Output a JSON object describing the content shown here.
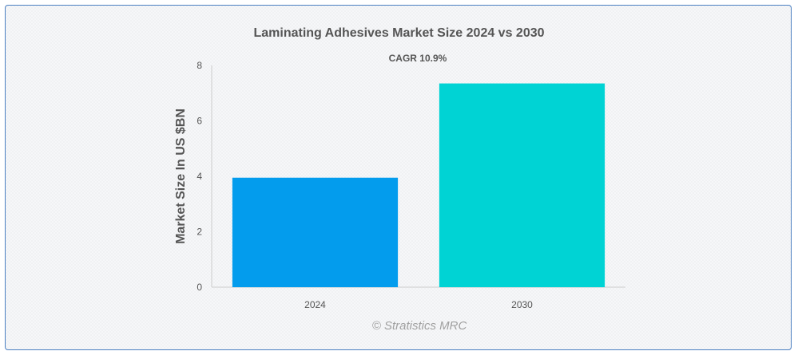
{
  "chart_data": {
    "type": "bar",
    "title": "Laminating Adhesives Market Size 2024 vs 2030",
    "subtitle": "CAGR 10.9%",
    "xlabel": "",
    "ylabel": "Market Size In US $BN",
    "categories": [
      "2024",
      "2030"
    ],
    "values": [
      3.95,
      7.35
    ],
    "colors": [
      "#039ced",
      "#00d3d4"
    ],
    "ylim": [
      0,
      8
    ],
    "yticks": [
      0,
      2,
      4,
      6,
      8
    ],
    "grid": false,
    "legend": "none"
  },
  "credit": "© Stratistics MRC"
}
